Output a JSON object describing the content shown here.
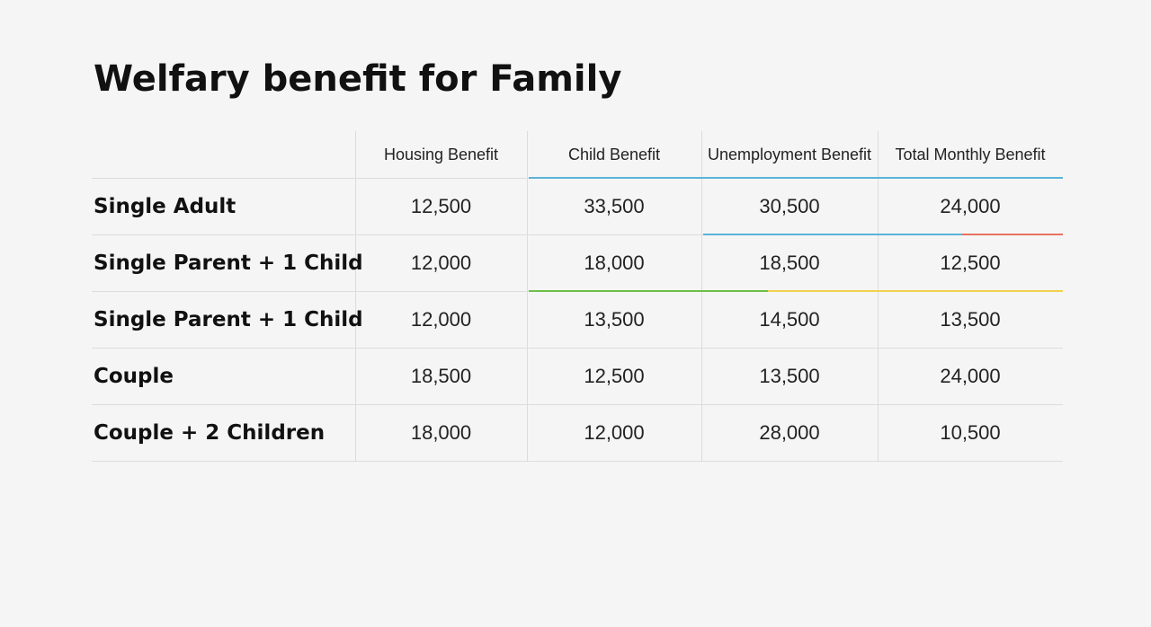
{
  "title": "Welfary benefit for Family",
  "chart_data": {
    "type": "table",
    "title": "Welfary benefit for Family",
    "columns": [
      "Housing Benefit",
      "Child Benefit",
      "Unemployment Benefit",
      "Total Monthly Benefit"
    ],
    "rows": [
      {
        "label": "Single Adult",
        "values": [
          "12,500",
          "33,500",
          "30,500",
          "24,000"
        ]
      },
      {
        "label": "Single Parent + 1 Child",
        "values": [
          "12,000",
          "18,000",
          "18,500",
          "12,500"
        ]
      },
      {
        "label": "Single Parent + 1 Child",
        "values": [
          "12,000",
          "13,500",
          "14,500",
          "13,500"
        ]
      },
      {
        "label": "Couple",
        "values": [
          "18,500",
          "12,500",
          "13,500",
          "24,000"
        ]
      },
      {
        "label": "Couple + 2 Children",
        "values": [
          "18,000",
          "12,000",
          "28,000",
          "10,500"
        ]
      }
    ]
  },
  "colors": {
    "blue_accent": "#5ab4d6",
    "red_accent": "#e8735e",
    "green_accent": "#6cbf4b",
    "yellow_accent": "#f2d24b"
  }
}
